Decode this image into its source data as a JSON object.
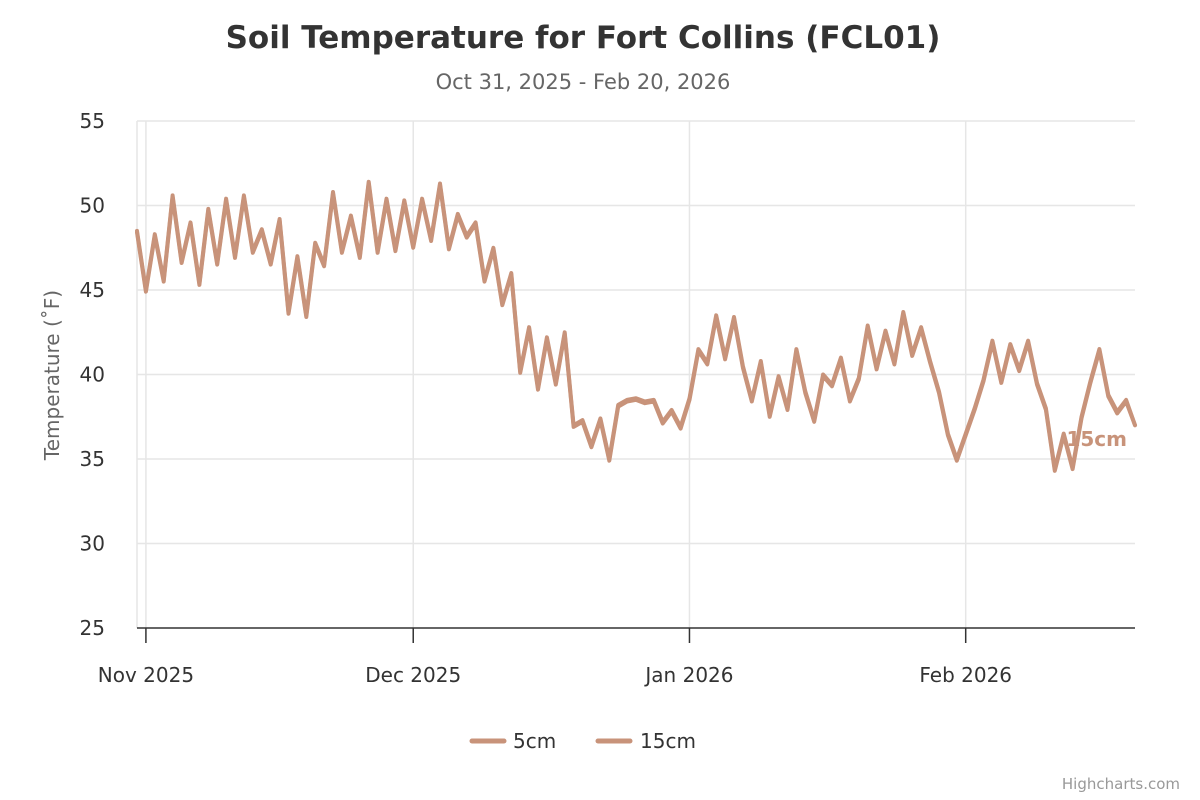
{
  "colors": {
    "series": "#c8937a",
    "grid": "#e6e6e6",
    "axis": "#333333"
  },
  "credits": "Highcharts.com",
  "chart_data": {
    "type": "line",
    "title": "Soil Temperature for Fort Collins (FCL01)",
    "subtitle": "Oct 31, 2025 - Feb 20, 2026",
    "ylabel": "Temperature (˚F)",
    "xlabel": "",
    "ylim": [
      25,
      55
    ],
    "yticks": [
      25,
      30,
      35,
      40,
      45,
      50,
      55
    ],
    "xlim": [
      "2025-10-31",
      "2026-02-20"
    ],
    "xticks": [
      {
        "date": "2025-11-01",
        "label": "Nov 2025"
      },
      {
        "date": "2025-12-01",
        "label": "Dec 2025"
      },
      {
        "date": "2026-01-01",
        "label": "Jan 2026"
      },
      {
        "date": "2026-02-01",
        "label": "Feb 2026"
      }
    ],
    "grid": true,
    "legend": "bottom-center",
    "end_label": "15cm",
    "series": [
      {
        "name": "5cm",
        "color": "#c8937a",
        "points": [
          [
            "2025-10-31",
            48.5
          ],
          [
            "2025-11-01",
            45.0
          ],
          [
            "2025-11-02",
            48.3
          ],
          [
            "2025-11-03",
            45.6
          ],
          [
            "2025-11-04",
            50.6
          ],
          [
            "2025-11-05",
            46.7
          ],
          [
            "2025-11-06",
            49.0
          ],
          [
            "2025-11-07",
            45.4
          ],
          [
            "2025-11-08",
            49.8
          ],
          [
            "2025-11-09",
            46.6
          ],
          [
            "2025-11-10",
            50.4
          ],
          [
            "2025-11-11",
            47.0
          ],
          [
            "2025-11-12",
            50.6
          ],
          [
            "2025-11-13",
            47.3
          ],
          [
            "2025-11-14",
            48.6
          ],
          [
            "2025-11-15",
            46.6
          ],
          [
            "2025-11-16",
            49.2
          ],
          [
            "2025-11-17",
            43.7
          ],
          [
            "2025-11-18",
            47.0
          ],
          [
            "2025-11-19",
            43.5
          ],
          [
            "2025-11-20",
            47.8
          ],
          [
            "2025-11-21",
            46.5
          ],
          [
            "2025-11-22",
            50.8
          ],
          [
            "2025-11-23",
            47.3
          ],
          [
            "2025-11-24",
            49.4
          ],
          [
            "2025-11-25",
            47.0
          ],
          [
            "2025-11-26",
            51.4
          ],
          [
            "2025-11-27",
            47.3
          ],
          [
            "2025-11-28",
            50.4
          ],
          [
            "2025-11-29",
            47.4
          ],
          [
            "2025-11-30",
            50.3
          ],
          [
            "2025-12-01",
            47.6
          ],
          [
            "2025-12-02",
            50.4
          ],
          [
            "2025-12-03",
            48.0
          ],
          [
            "2025-12-04",
            51.3
          ],
          [
            "2025-12-05",
            47.5
          ],
          [
            "2025-12-06",
            49.5
          ],
          [
            "2025-12-07",
            48.2
          ],
          [
            "2025-12-08",
            49.0
          ],
          [
            "2025-12-09",
            45.6
          ],
          [
            "2025-12-10",
            47.5
          ],
          [
            "2025-12-11",
            44.2
          ],
          [
            "2025-12-12",
            46.0
          ],
          [
            "2025-12-13",
            40.2
          ],
          [
            "2025-12-14",
            42.8
          ],
          [
            "2025-12-15",
            39.2
          ],
          [
            "2025-12-16",
            42.2
          ],
          [
            "2025-12-17",
            39.5
          ],
          [
            "2025-12-18",
            42.5
          ],
          [
            "2025-12-19",
            37.0
          ],
          [
            "2025-12-20",
            37.3
          ],
          [
            "2025-12-21",
            35.8
          ],
          [
            "2025-12-22",
            37.4
          ],
          [
            "2025-12-23",
            35.0
          ],
          [
            "2025-12-24",
            38.2
          ],
          [
            "2025-12-25",
            38.5
          ],
          [
            "2025-12-26",
            38.6
          ],
          [
            "2025-12-27",
            38.4
          ],
          [
            "2025-12-28",
            38.5
          ],
          [
            "2025-12-29",
            37.2
          ],
          [
            "2025-12-30",
            37.9
          ],
          [
            "2025-12-31",
            36.9
          ],
          [
            "2026-01-01",
            38.6
          ],
          [
            "2026-01-02",
            41.5
          ],
          [
            "2026-01-03",
            40.7
          ],
          [
            "2026-01-04",
            43.5
          ],
          [
            "2026-01-05",
            41.0
          ],
          [
            "2026-01-06",
            43.4
          ],
          [
            "2026-01-07",
            40.5
          ],
          [
            "2026-01-08",
            38.5
          ],
          [
            "2026-01-09",
            40.8
          ],
          [
            "2026-01-10",
            37.6
          ],
          [
            "2026-01-11",
            39.9
          ],
          [
            "2026-01-12",
            38.0
          ],
          [
            "2026-01-13",
            41.5
          ],
          [
            "2026-01-14",
            39.0
          ],
          [
            "2026-01-15",
            37.3
          ],
          [
            "2026-01-16",
            40.0
          ],
          [
            "2026-01-17",
            39.4
          ],
          [
            "2026-01-18",
            41.0
          ],
          [
            "2026-01-19",
            38.5
          ],
          [
            "2026-01-20",
            39.8
          ],
          [
            "2026-01-21",
            42.9
          ],
          [
            "2026-01-22",
            40.4
          ],
          [
            "2026-01-23",
            42.6
          ],
          [
            "2026-01-24",
            40.7
          ],
          [
            "2026-01-25",
            43.7
          ],
          [
            "2026-01-26",
            41.2
          ],
          [
            "2026-01-27",
            42.8
          ],
          [
            "2026-01-28",
            40.8
          ],
          [
            "2026-01-29",
            39.0
          ],
          [
            "2026-01-30",
            36.5
          ],
          [
            "2026-01-31",
            35.0
          ],
          [
            "2026-02-01",
            36.5
          ],
          [
            "2026-02-02",
            38.0
          ],
          [
            "2026-02-03",
            39.7
          ],
          [
            "2026-02-04",
            42.0
          ],
          [
            "2026-02-05",
            39.6
          ],
          [
            "2026-02-06",
            41.8
          ],
          [
            "2026-02-07",
            40.3
          ],
          [
            "2026-02-08",
            42.0
          ],
          [
            "2026-02-09",
            39.5
          ],
          [
            "2026-02-10",
            38.0
          ],
          [
            "2026-02-11",
            34.4
          ],
          [
            "2026-02-12",
            36.5
          ],
          [
            "2026-02-13",
            34.5
          ],
          [
            "2026-02-14",
            37.5
          ],
          [
            "2026-02-15",
            39.6
          ],
          [
            "2026-02-16",
            41.5
          ],
          [
            "2026-02-17",
            38.8
          ],
          [
            "2026-02-18",
            37.8
          ],
          [
            "2026-02-19",
            38.5
          ],
          [
            "2026-02-20",
            37.0
          ]
        ]
      },
      {
        "name": "15cm",
        "color": "#c8937a",
        "points": [
          [
            "2025-10-31",
            48.4
          ],
          [
            "2025-11-01",
            44.9
          ],
          [
            "2025-11-02",
            48.2
          ],
          [
            "2025-11-03",
            45.5
          ],
          [
            "2025-11-04",
            50.5
          ],
          [
            "2025-11-05",
            46.6
          ],
          [
            "2025-11-06",
            48.9
          ],
          [
            "2025-11-07",
            45.3
          ],
          [
            "2025-11-08",
            49.7
          ],
          [
            "2025-11-09",
            46.5
          ],
          [
            "2025-11-10",
            50.3
          ],
          [
            "2025-11-11",
            46.9
          ],
          [
            "2025-11-12",
            50.5
          ],
          [
            "2025-11-13",
            47.2
          ],
          [
            "2025-11-14",
            48.5
          ],
          [
            "2025-11-15",
            46.5
          ],
          [
            "2025-11-16",
            49.1
          ],
          [
            "2025-11-17",
            43.6
          ],
          [
            "2025-11-18",
            46.9
          ],
          [
            "2025-11-19",
            43.4
          ],
          [
            "2025-11-20",
            47.7
          ],
          [
            "2025-11-21",
            46.4
          ],
          [
            "2025-11-22",
            50.7
          ],
          [
            "2025-11-23",
            47.2
          ],
          [
            "2025-11-24",
            49.3
          ],
          [
            "2025-11-25",
            46.9
          ],
          [
            "2025-11-26",
            51.3
          ],
          [
            "2025-11-27",
            47.2
          ],
          [
            "2025-11-28",
            50.3
          ],
          [
            "2025-11-29",
            47.3
          ],
          [
            "2025-11-30",
            50.2
          ],
          [
            "2025-12-01",
            47.5
          ],
          [
            "2025-12-02",
            50.3
          ],
          [
            "2025-12-03",
            47.9
          ],
          [
            "2025-12-04",
            51.2
          ],
          [
            "2025-12-05",
            47.4
          ],
          [
            "2025-12-06",
            49.4
          ],
          [
            "2025-12-07",
            48.1
          ],
          [
            "2025-12-08",
            48.9
          ],
          [
            "2025-12-09",
            45.5
          ],
          [
            "2025-12-10",
            47.4
          ],
          [
            "2025-12-11",
            44.1
          ],
          [
            "2025-12-12",
            45.9
          ],
          [
            "2025-12-13",
            40.1
          ],
          [
            "2025-12-14",
            42.7
          ],
          [
            "2025-12-15",
            39.1
          ],
          [
            "2025-12-16",
            42.1
          ],
          [
            "2025-12-17",
            39.4
          ],
          [
            "2025-12-18",
            42.4
          ],
          [
            "2025-12-19",
            36.9
          ],
          [
            "2025-12-20",
            37.2
          ],
          [
            "2025-12-21",
            35.7
          ],
          [
            "2025-12-22",
            37.3
          ],
          [
            "2025-12-23",
            34.9
          ],
          [
            "2025-12-24",
            38.1
          ],
          [
            "2025-12-25",
            38.4
          ],
          [
            "2025-12-26",
            38.5
          ],
          [
            "2025-12-27",
            38.3
          ],
          [
            "2025-12-28",
            38.4
          ],
          [
            "2025-12-29",
            37.1
          ],
          [
            "2025-12-30",
            37.8
          ],
          [
            "2025-12-31",
            36.8
          ],
          [
            "2026-01-01",
            38.5
          ],
          [
            "2026-01-02",
            41.4
          ],
          [
            "2026-01-03",
            40.6
          ],
          [
            "2026-01-04",
            43.4
          ],
          [
            "2026-01-05",
            40.9
          ],
          [
            "2026-01-06",
            43.3
          ],
          [
            "2026-01-07",
            40.4
          ],
          [
            "2026-01-08",
            38.4
          ],
          [
            "2026-01-09",
            40.7
          ],
          [
            "2026-01-10",
            37.5
          ],
          [
            "2026-01-11",
            39.8
          ],
          [
            "2026-01-12",
            37.9
          ],
          [
            "2026-01-13",
            41.4
          ],
          [
            "2026-01-14",
            38.9
          ],
          [
            "2026-01-15",
            37.2
          ],
          [
            "2026-01-16",
            39.9
          ],
          [
            "2026-01-17",
            39.3
          ],
          [
            "2026-01-18",
            40.9
          ],
          [
            "2026-01-19",
            38.4
          ],
          [
            "2026-01-20",
            39.7
          ],
          [
            "2026-01-21",
            42.8
          ],
          [
            "2026-01-22",
            40.3
          ],
          [
            "2026-01-23",
            42.5
          ],
          [
            "2026-01-24",
            40.6
          ],
          [
            "2026-01-25",
            43.6
          ],
          [
            "2026-01-26",
            41.1
          ],
          [
            "2026-01-27",
            42.7
          ],
          [
            "2026-01-28",
            40.7
          ],
          [
            "2026-01-29",
            38.9
          ],
          [
            "2026-01-30",
            36.4
          ],
          [
            "2026-01-31",
            34.9
          ],
          [
            "2026-02-01",
            36.4
          ],
          [
            "2026-02-02",
            37.9
          ],
          [
            "2026-02-03",
            39.6
          ],
          [
            "2026-02-04",
            41.9
          ],
          [
            "2026-02-05",
            39.5
          ],
          [
            "2026-02-06",
            41.7
          ],
          [
            "2026-02-07",
            40.2
          ],
          [
            "2026-02-08",
            41.9
          ],
          [
            "2026-02-09",
            39.4
          ],
          [
            "2026-02-10",
            37.9
          ],
          [
            "2026-02-11",
            34.3
          ],
          [
            "2026-02-12",
            36.4
          ],
          [
            "2026-02-13",
            34.4
          ],
          [
            "2026-02-14",
            37.4
          ],
          [
            "2026-02-15",
            39.5
          ],
          [
            "2026-02-16",
            41.4
          ],
          [
            "2026-02-17",
            38.7
          ],
          [
            "2026-02-18",
            37.7
          ],
          [
            "2026-02-19",
            38.4
          ],
          [
            "2026-02-20",
            37.0
          ]
        ]
      }
    ]
  }
}
